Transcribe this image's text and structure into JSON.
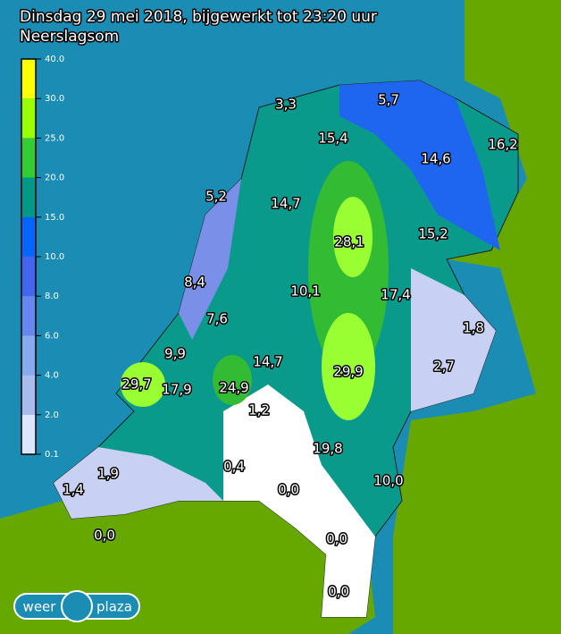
{
  "header": {
    "title": "Dinsdag 29 mei 2018, bijgewerkt tot 23:20 uur",
    "subtitle": "Neerslagsom"
  },
  "legend": {
    "ticks": [
      "40.0",
      "30.0",
      "25.0",
      "20.0",
      "15.0",
      "10.0",
      "8.0",
      "6.0",
      "4.0",
      "2.0",
      "0.1"
    ]
  },
  "stations": [
    "3,3",
    "5,7",
    "15,4",
    "16,2",
    "14,6",
    "5,2",
    "14,7",
    "28,1",
    "15,2",
    "8,4",
    "10,1",
    "17,4",
    "7,6",
    "1,8",
    "9,9",
    "14,7",
    "2,7",
    "29,9",
    "29,7",
    "17,9",
    "24,9",
    "1,2",
    "19,8",
    "0,4",
    "1,9",
    "10,0",
    "1,4",
    "0,0",
    "0,0",
    "0,0",
    "0,0"
  ],
  "logo": {
    "left": "weer",
    "right": "plaza"
  }
}
